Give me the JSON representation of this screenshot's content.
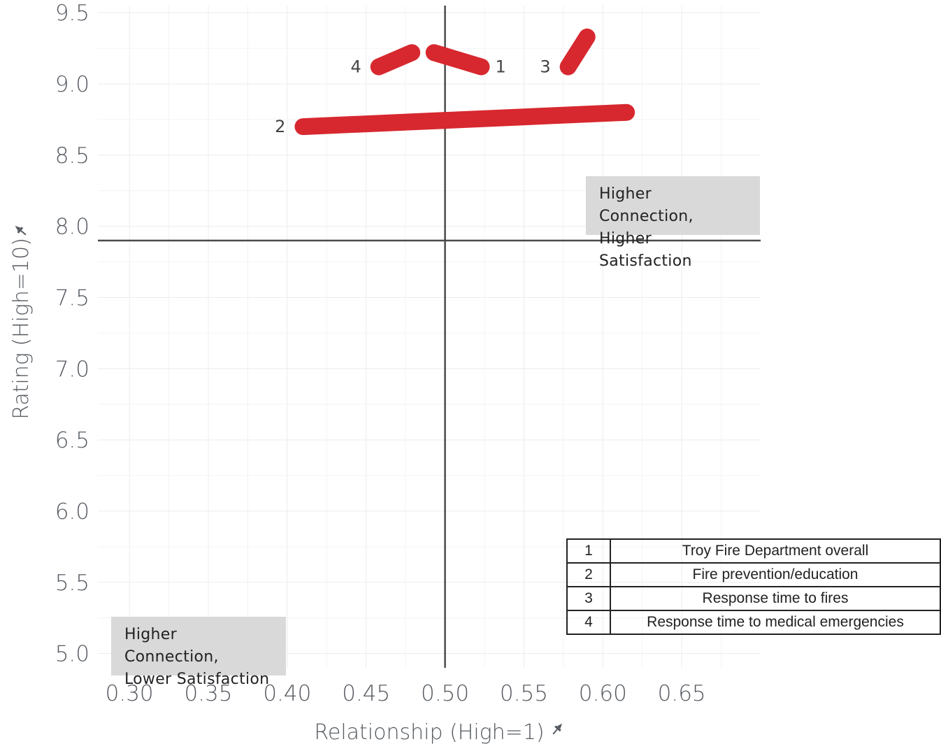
{
  "chart_data": {
    "type": "scatter",
    "title": "",
    "xlabel": "Relationship (High=1)",
    "ylabel": "Rating (High=10)",
    "xlim": [
      0.28,
      0.7
    ],
    "ylim": [
      4.9,
      9.55
    ],
    "x_ticks": [
      "0.30",
      "0.35",
      "0.40",
      "0.45",
      "0.50",
      "0.55",
      "0.60",
      "0.65"
    ],
    "y_ticks": [
      "5.0",
      "5.5",
      "6.0",
      "6.5",
      "7.0",
      "7.5",
      "8.0",
      "8.5",
      "9.0",
      "9.5"
    ],
    "reference_lines": {
      "x": 0.5,
      "y": 7.9
    },
    "grid": true,
    "pin_icon": "pin-icon",
    "series": [
      {
        "label": "1",
        "from": {
          "x": 0.493,
          "y": 9.22
        },
        "to": {
          "x": 0.523,
          "y": 9.12
        }
      },
      {
        "label": "2",
        "from": {
          "x": 0.41,
          "y": 8.7
        },
        "to": {
          "x": 0.615,
          "y": 8.8
        }
      },
      {
        "label": "3",
        "from": {
          "x": 0.578,
          "y": 9.12
        },
        "to": {
          "x": 0.59,
          "y": 9.33
        }
      },
      {
        "label": "4",
        "from": {
          "x": 0.458,
          "y": 9.12
        },
        "to": {
          "x": 0.479,
          "y": 9.22
        }
      }
    ],
    "line_color": "#d7282f",
    "annotations": [
      "Higher Connection,\nHigher Satisfaction",
      "Higher Connection,\nLower Satisfaction"
    ]
  },
  "legend": [
    {
      "num": "1",
      "text": "Troy Fire Department overall"
    },
    {
      "num": "2",
      "text": "Fire prevention/education"
    },
    {
      "num": "3",
      "text": "Response time to fires"
    },
    {
      "num": "4",
      "text": "Response time to medical emergencies"
    }
  ]
}
